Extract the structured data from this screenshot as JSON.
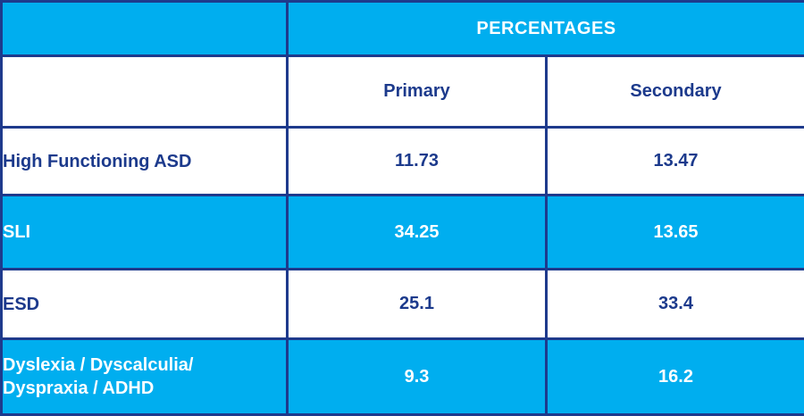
{
  "table": {
    "title": "PERCENTAGES",
    "columns": [
      "Primary",
      "Secondary"
    ],
    "rows": [
      {
        "label": "High Functioning ASD",
        "primary": "11.73",
        "secondary": "13.47",
        "highlighted": false
      },
      {
        "label": "SLI",
        "primary": "34.25",
        "secondary": "13.65",
        "highlighted": true
      },
      {
        "label": "ESD",
        "primary": "25.1",
        "secondary": "33.4",
        "highlighted": false
      },
      {
        "label": "Dyslexia / Dyscalculia/\nDyspraxia / ADHD",
        "primary": "9.3",
        "secondary": "16.2",
        "highlighted": true
      }
    ],
    "colors": {
      "accent_cyan": "#00AEEF",
      "border_navy": "#1e3a8c",
      "text_navy": "#1c3a8c",
      "text_white": "#ffffff"
    }
  },
  "chart_data": {
    "type": "table",
    "title": "PERCENTAGES",
    "categories": [
      "High Functioning ASD",
      "SLI",
      "ESD",
      "Dyslexia / Dyscalculia/ Dyspraxia / ADHD"
    ],
    "series": [
      {
        "name": "Primary",
        "values": [
          11.73,
          34.25,
          25.1,
          9.3
        ]
      },
      {
        "name": "Secondary",
        "values": [
          13.47,
          13.65,
          33.4,
          16.2
        ]
      }
    ]
  }
}
